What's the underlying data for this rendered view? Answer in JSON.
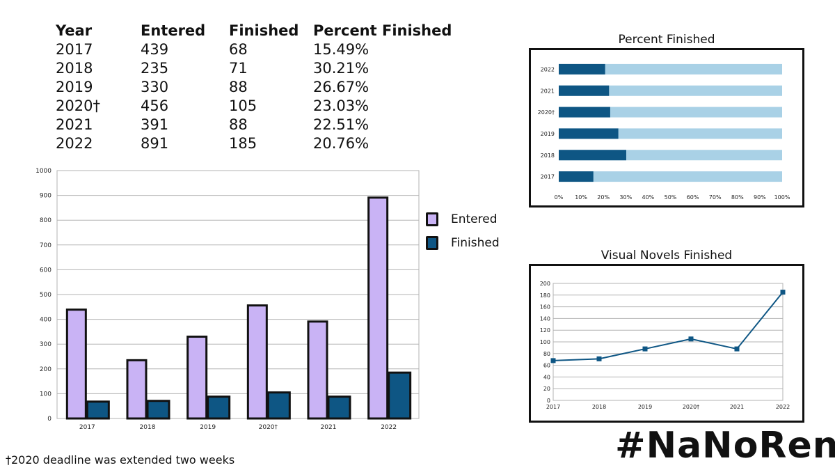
{
  "table": {
    "headers": [
      "Year",
      "Entered",
      "Finished",
      "Percent Finished"
    ],
    "rows": [
      [
        "2017",
        "439",
        "68",
        "15.49%"
      ],
      [
        "2018",
        "235",
        "71",
        "30.21%"
      ],
      [
        "2019",
        "330",
        "88",
        "26.67%"
      ],
      [
        "2020†",
        "456",
        "105",
        "23.03%"
      ],
      [
        "2021",
        "391",
        "88",
        "22.51%"
      ],
      [
        "2022",
        "891",
        "185",
        "20.76%"
      ]
    ]
  },
  "footnote": "†2020 deadline was extended two weeks",
  "hashtag": "#NaNoRenO",
  "colors": {
    "entered": "#c9b3f5",
    "finished": "#0e5684",
    "light_blue": "#a9d1e6",
    "line": "#0e5684"
  },
  "chart_data": [
    {
      "type": "bar",
      "title": "",
      "categories": [
        "2017",
        "2018",
        "2019",
        "2020†",
        "2021",
        "2022"
      ],
      "series": [
        {
          "name": "Entered",
          "values": [
            439,
            235,
            330,
            456,
            391,
            891
          ]
        },
        {
          "name": "Finished",
          "values": [
            68,
            71,
            88,
            105,
            88,
            185
          ]
        }
      ],
      "ylim": [
        0,
        1000
      ],
      "yticks": [
        0,
        100,
        200,
        300,
        400,
        500,
        600,
        700,
        800,
        900,
        1000
      ],
      "grid": true,
      "legend": "right"
    },
    {
      "type": "bar",
      "orientation": "horizontal-stacked-100",
      "title": "Percent Finished",
      "categories": [
        "2022",
        "2021",
        "2020†",
        "2019",
        "2018",
        "2017"
      ],
      "series": [
        {
          "name": "Finished",
          "values": [
            20.76,
            22.51,
            23.03,
            26.67,
            30.21,
            15.49
          ]
        },
        {
          "name": "Remaining",
          "values": [
            79.24,
            77.49,
            76.97,
            73.33,
            69.79,
            84.51
          ]
        }
      ],
      "xlim": [
        0,
        100
      ],
      "xticks": [
        "0%",
        "10%",
        "20%",
        "30%",
        "40%",
        "50%",
        "60%",
        "70%",
        "80%",
        "90%",
        "100%"
      ],
      "grid": false
    },
    {
      "type": "line",
      "title": "Visual Novels Finished",
      "categories": [
        "2017",
        "2018",
        "2019",
        "2020†",
        "2021",
        "2022"
      ],
      "series": [
        {
          "name": "Finished",
          "values": [
            68,
            71,
            88,
            105,
            88,
            185
          ]
        }
      ],
      "ylim": [
        0,
        200
      ],
      "yticks": [
        0,
        20,
        40,
        60,
        80,
        100,
        120,
        140,
        160,
        180,
        200
      ],
      "grid": true
    }
  ]
}
